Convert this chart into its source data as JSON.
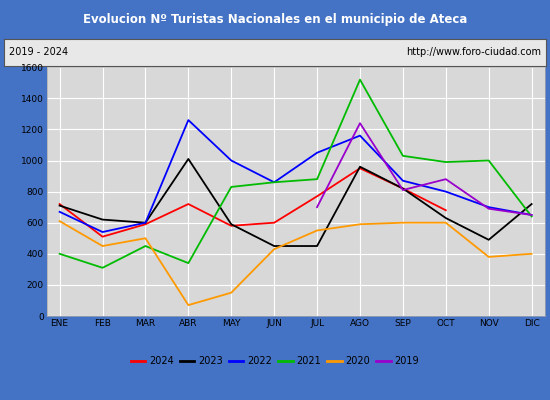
{
  "title": "Evolucion Nº Turistas Nacionales en el municipio de Ateca",
  "title_bgcolor": "#4472c4",
  "title_color": "white",
  "subtitle_left": "2019 - 2024",
  "subtitle_right": "http://www.foro-ciudad.com",
  "months": [
    "ENE",
    "FEB",
    "MAR",
    "ABR",
    "MAY",
    "JUN",
    "JUL",
    "AGO",
    "SEP",
    "OCT",
    "NOV",
    "DIC"
  ],
  "ylim": [
    0,
    1600
  ],
  "yticks": [
    0,
    200,
    400,
    600,
    800,
    1000,
    1200,
    1400,
    1600
  ],
  "series": {
    "2024": {
      "color": "#ff0000",
      "data": [
        720,
        510,
        590,
        720,
        580,
        600,
        770,
        950,
        820,
        680,
        null,
        null
      ]
    },
    "2023": {
      "color": "#000000",
      "data": [
        710,
        620,
        600,
        1010,
        590,
        450,
        450,
        960,
        820,
        630,
        490,
        720
      ]
    },
    "2022": {
      "color": "#0000ff",
      "data": [
        670,
        540,
        600,
        1260,
        1000,
        860,
        1050,
        1160,
        870,
        800,
        700,
        650
      ]
    },
    "2021": {
      "color": "#00bb00",
      "data": [
        400,
        310,
        450,
        340,
        830,
        860,
        880,
        1520,
        1030,
        990,
        1000,
        640
      ]
    },
    "2020": {
      "color": "#ff9900",
      "data": [
        610,
        450,
        500,
        70,
        150,
        430,
        550,
        590,
        600,
        600,
        380,
        400
      ]
    },
    "2019": {
      "color": "#9900cc",
      "data": [
        null,
        null,
        null,
        null,
        null,
        null,
        700,
        1240,
        810,
        880,
        690,
        650
      ]
    }
  },
  "legend_order": [
    "2024",
    "2023",
    "2022",
    "2021",
    "2020",
    "2019"
  ],
  "plot_bg_color": "#d8d8d8",
  "grid_color": "white",
  "border_color": "#4472c4",
  "fig_bg_color": "#4472c4"
}
